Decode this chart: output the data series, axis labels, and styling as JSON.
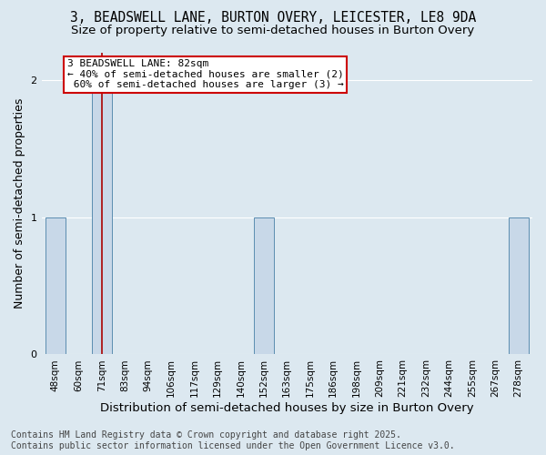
{
  "title": "3, BEADSWELL LANE, BURTON OVERY, LEICESTER, LE8 9DA",
  "subtitle": "Size of property relative to semi-detached houses in Burton Overy",
  "xlabel": "Distribution of semi-detached houses by size in Burton Overy",
  "ylabel": "Number of semi-detached properties",
  "footnote": "Contains HM Land Registry data © Crown copyright and database right 2025.\nContains public sector information licensed under the Open Government Licence v3.0.",
  "categories": [
    "48sqm",
    "60sqm",
    "71sqm",
    "83sqm",
    "94sqm",
    "106sqm",
    "117sqm",
    "129sqm",
    "140sqm",
    "152sqm",
    "163sqm",
    "175sqm",
    "186sqm",
    "198sqm",
    "209sqm",
    "221sqm",
    "232sqm",
    "244sqm",
    "255sqm",
    "267sqm",
    "278sqm"
  ],
  "values": [
    1,
    0,
    2,
    0,
    0,
    0,
    0,
    0,
    0,
    1,
    0,
    0,
    0,
    0,
    0,
    0,
    0,
    0,
    0,
    0,
    1
  ],
  "bar_color": "#c8d8e8",
  "bar_edge_color": "#5b8db0",
  "background_color": "#dce8f0",
  "property_label": "3 BEADSWELL LANE: 82sqm",
  "property_bin_index": 2,
  "annotation_line1": "3 BEADSWELL LANE: 82sqm",
  "annotation_line2": "← 40% of semi-detached houses are smaller (2)",
  "annotation_line3": " 60% of semi-detached houses are larger (3) →",
  "annotation_box_color": "#ffffff",
  "annotation_border_color": "#cc0000",
  "vline_color": "#aa0000",
  "ylim": [
    0,
    2.2
  ],
  "yticks": [
    0,
    1,
    2
  ],
  "title_fontsize": 10.5,
  "subtitle_fontsize": 9.5,
  "axis_label_fontsize": 9,
  "tick_fontsize": 7.5,
  "footnote_fontsize": 7,
  "annotation_fontsize": 8
}
